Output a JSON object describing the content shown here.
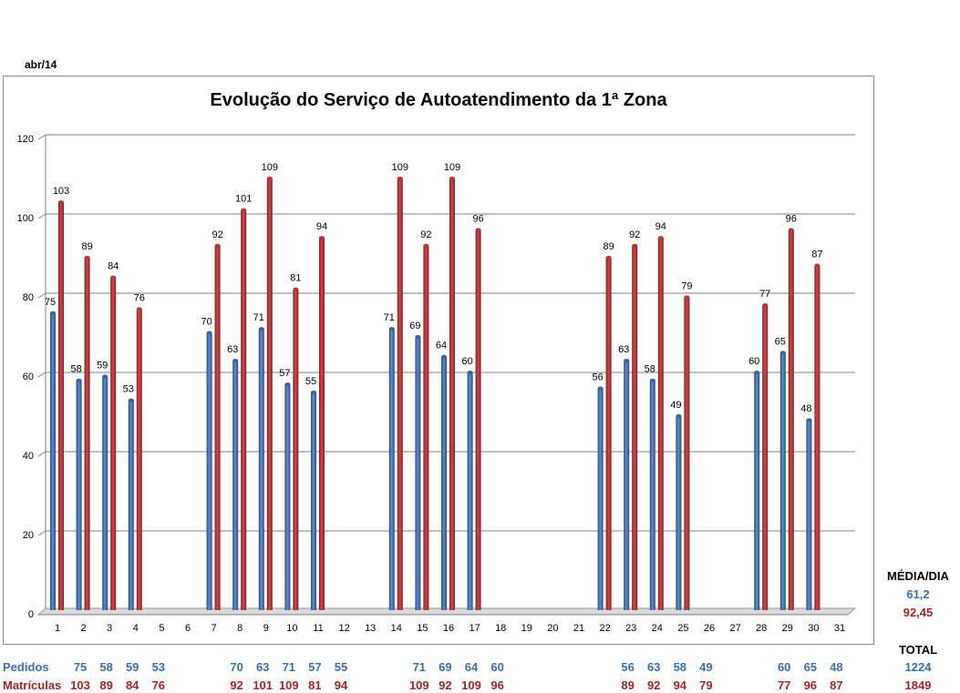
{
  "header": {
    "period": "abr/14"
  },
  "chart_data": {
    "type": "bar",
    "title": "Evolução do Serviço de Autoatendimento da 1ª Zona",
    "xlabel": "",
    "ylabel": "",
    "ylim": [
      0,
      120
    ],
    "yticks": [
      "0",
      "20",
      "40",
      "60",
      "80",
      "100",
      "120"
    ],
    "categories": [
      "1",
      "2",
      "3",
      "4",
      "5",
      "6",
      "7",
      "8",
      "9",
      "10",
      "11",
      "12",
      "13",
      "14",
      "15",
      "16",
      "17",
      "18",
      "19",
      "20",
      "21",
      "22",
      "23",
      "24",
      "25",
      "26",
      "27",
      "28",
      "29",
      "30",
      "31"
    ],
    "series": [
      {
        "name": "Pedidos",
        "color": "#3f6da8",
        "values": [
          75,
          58,
          59,
          53,
          null,
          null,
          70,
          63,
          71,
          57,
          55,
          null,
          null,
          71,
          69,
          64,
          60,
          null,
          null,
          null,
          null,
          56,
          63,
          58,
          49,
          null,
          null,
          60,
          65,
          48,
          null
        ]
      },
      {
        "name": "Matrículas",
        "color": "#a0262a",
        "values": [
          103,
          89,
          84,
          76,
          null,
          null,
          92,
          101,
          109,
          81,
          94,
          null,
          null,
          109,
          92,
          109,
          96,
          null,
          null,
          null,
          null,
          89,
          92,
          94,
          79,
          null,
          null,
          77,
          96,
          87,
          null
        ]
      }
    ],
    "grid": true,
    "legend": "none"
  },
  "table": {
    "pedidos_label": "Pedidos",
    "matriculas_label": "Matrículas",
    "pedidos": [
      "75",
      "58",
      "59",
      "53",
      "",
      "",
      "70",
      "63",
      "71",
      "57",
      "55",
      "",
      "",
      "71",
      "69",
      "64",
      "60",
      "",
      "",
      "",
      "",
      "56",
      "63",
      "58",
      "49",
      "",
      "",
      "60",
      "65",
      "48",
      ""
    ],
    "matriculas": [
      "103",
      "89",
      "84",
      "76",
      "",
      "",
      "92",
      "101",
      "109",
      "81",
      "94",
      "",
      "",
      "109",
      "92",
      "109",
      "96",
      "",
      "",
      "",
      "",
      "89",
      "92",
      "94",
      "79",
      "",
      "",
      "77",
      "96",
      "87",
      ""
    ]
  },
  "summary": {
    "media_label": "MÉDIA/DIA",
    "media_pedidos": "61,2",
    "media_matriculas": "92,45",
    "total_label": "TOTAL",
    "total_pedidos": "1224",
    "total_matriculas": "1849"
  }
}
